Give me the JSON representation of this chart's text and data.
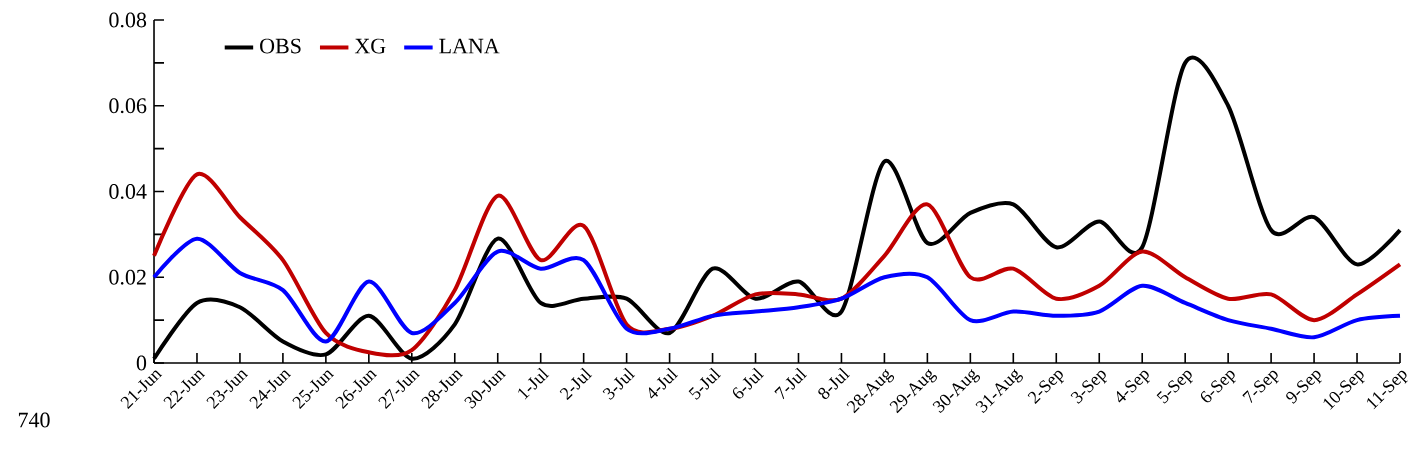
{
  "chart_data": {
    "type": "line",
    "categories": [
      "21-Jun",
      "22-Jun",
      "23-Jun",
      "24-Jun",
      "25-Jun",
      "26-Jun",
      "27-Jun",
      "28-Jun",
      "30-Jun",
      "1-Jul",
      "2-Jul",
      "3-Jul",
      "4-Jul",
      "5-Jul",
      "6-Jul",
      "7-Jul",
      "8-Jul",
      "28-Aug",
      "29-Aug",
      "30-Aug",
      "31-Aug",
      "2-Sep",
      "3-Sep",
      "4-Sep",
      "5-Sep",
      "6-Sep",
      "7-Sep",
      "9-Sep",
      "10-Sep",
      "11-Sep"
    ],
    "series": [
      {
        "name": "OBS",
        "color": "#000000",
        "values": [
          0.001,
          0.014,
          0.013,
          0.005,
          0.002,
          0.011,
          0.001,
          0.009,
          0.029,
          0.014,
          0.015,
          0.015,
          0.007,
          0.022,
          0.015,
          0.019,
          0.012,
          0.047,
          0.028,
          0.035,
          0.037,
          0.027,
          0.033,
          0.027,
          0.07,
          0.06,
          0.031,
          0.034,
          0.023,
          0.031
        ]
      },
      {
        "name": "XG",
        "color": "#c00000",
        "values": [
          0.025,
          0.044,
          0.034,
          0.024,
          0.007,
          0.0025,
          0.003,
          0.017,
          0.039,
          0.024,
          0.032,
          0.009,
          0.008,
          0.011,
          0.016,
          0.016,
          0.015,
          0.025,
          0.037,
          0.02,
          0.022,
          0.015,
          0.018,
          0.026,
          0.02,
          0.015,
          0.016,
          0.01,
          0.016,
          0.023
        ]
      },
      {
        "name": "LANA",
        "color": "#0000ff",
        "values": [
          0.02,
          0.029,
          0.021,
          0.017,
          0.005,
          0.019,
          0.007,
          0.014,
          0.026,
          0.022,
          0.024,
          0.008,
          0.008,
          0.011,
          0.012,
          0.013,
          0.015,
          0.02,
          0.02,
          0.01,
          0.012,
          0.011,
          0.012,
          0.018,
          0.014,
          0.01,
          0.008,
          0.006,
          0.01,
          0.011
        ]
      }
    ],
    "ylim": [
      0,
      0.08
    ],
    "yticks": [
      0,
      {
        "value": 0.01,
        "label": null
      },
      0.02,
      {
        "value": 0.03,
        "label": null
      },
      0.04,
      {
        "value": 0.05,
        "label": null
      },
      0.06,
      {
        "value": 0.07,
        "label": null
      },
      0.08
    ],
    "legend": "top left",
    "grid": false,
    "marker": "none",
    "line_style": "solid",
    "annotations": [
      "740"
    ]
  }
}
